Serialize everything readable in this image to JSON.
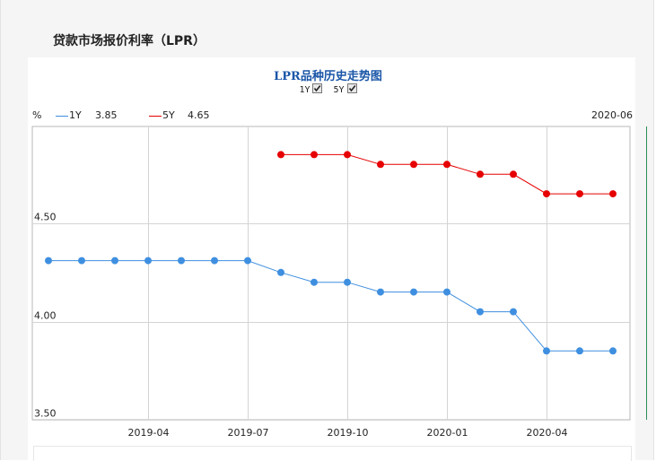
{
  "panel_title": "贷款市场报价利率（LPR）",
  "chart_data": {
    "type": "line",
    "title": "LPR品种历史走势图",
    "toggles": [
      {
        "label": "1Y",
        "checked": true
      },
      {
        "label": "5Y",
        "checked": true
      }
    ],
    "yunit": "%",
    "current_date": "2020-06",
    "ylim": [
      3.5,
      5.0
    ],
    "yticks": [
      3.5,
      4.0,
      4.5
    ],
    "ytick_labels": [
      "3.50",
      "4.00",
      "4.50"
    ],
    "x_range": [
      "2019-01",
      "2020-06"
    ],
    "xticks": [
      "2019-04",
      "2019-07",
      "2019-10",
      "2020-01",
      "2020-04"
    ],
    "grid": true,
    "series": [
      {
        "name": "1Y",
        "legend_value": "3.85",
        "color": "#3f8fe0",
        "points": [
          {
            "x": "2019-01",
            "y": 4.31
          },
          {
            "x": "2019-02",
            "y": 4.31
          },
          {
            "x": "2019-03",
            "y": 4.31
          },
          {
            "x": "2019-04",
            "y": 4.31
          },
          {
            "x": "2019-05",
            "y": 4.31
          },
          {
            "x": "2019-06",
            "y": 4.31
          },
          {
            "x": "2019-07",
            "y": 4.31
          },
          {
            "x": "2019-08",
            "y": 4.25
          },
          {
            "x": "2019-09",
            "y": 4.2
          },
          {
            "x": "2019-10",
            "y": 4.2
          },
          {
            "x": "2019-11",
            "y": 4.15
          },
          {
            "x": "2019-12",
            "y": 4.15
          },
          {
            "x": "2020-01",
            "y": 4.15
          },
          {
            "x": "2020-02",
            "y": 4.05
          },
          {
            "x": "2020-03",
            "y": 4.05
          },
          {
            "x": "2020-04",
            "y": 3.85
          },
          {
            "x": "2020-05",
            "y": 3.85
          },
          {
            "x": "2020-06",
            "y": 3.85
          }
        ]
      },
      {
        "name": "5Y",
        "legend_value": "4.65",
        "color": "#e60000",
        "points": [
          {
            "x": "2019-08",
            "y": 4.85
          },
          {
            "x": "2019-09",
            "y": 4.85
          },
          {
            "x": "2019-10",
            "y": 4.85
          },
          {
            "x": "2019-11",
            "y": 4.8
          },
          {
            "x": "2019-12",
            "y": 4.8
          },
          {
            "x": "2020-01",
            "y": 4.8
          },
          {
            "x": "2020-02",
            "y": 4.75
          },
          {
            "x": "2020-03",
            "y": 4.75
          },
          {
            "x": "2020-04",
            "y": 4.65
          },
          {
            "x": "2020-05",
            "y": 4.65
          },
          {
            "x": "2020-06",
            "y": 4.65
          }
        ]
      }
    ]
  }
}
